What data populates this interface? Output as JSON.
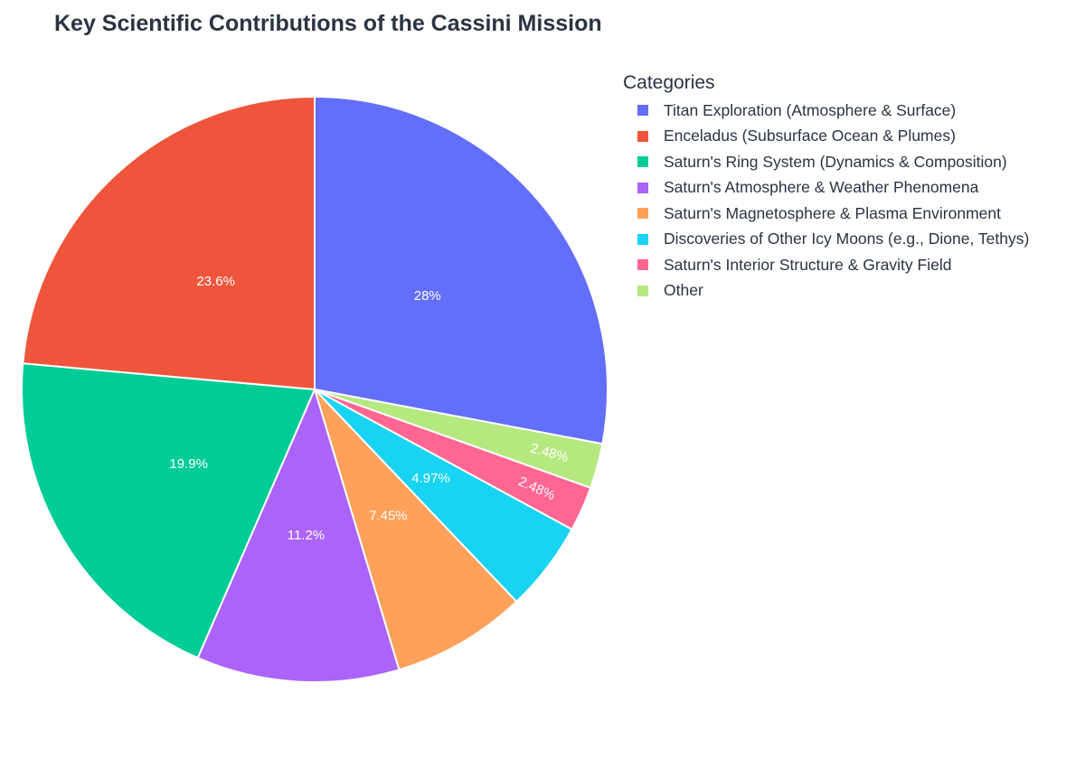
{
  "chart_data": {
    "type": "pie",
    "title": "Key Scientific Contributions of the Cassini Mission",
    "legend_title": "Categories",
    "legend_position": "top-right",
    "slices": [
      {
        "label": "Titan Exploration (Atmosphere & Surface)",
        "value": 28,
        "display": "28%",
        "color": "#636efa"
      },
      {
        "label": "Enceladus (Subsurface Ocean & Plumes)",
        "value": 23.6,
        "display": "23.6%",
        "color": "#ef553b"
      },
      {
        "label": "Saturn's Ring System (Dynamics & Composition)",
        "value": 19.9,
        "display": "19.9%",
        "color": "#00cc96"
      },
      {
        "label": "Saturn's Atmosphere & Weather Phenomena",
        "value": 11.2,
        "display": "11.2%",
        "color": "#ab63fa"
      },
      {
        "label": "Saturn's Magnetosphere & Plasma Environment",
        "value": 7.45,
        "display": "7.45%",
        "color": "#ffa15a"
      },
      {
        "label": "Discoveries of Other Icy Moons (e.g., Dione, Tethys)",
        "value": 4.97,
        "display": "4.97%",
        "color": "#19d3f3"
      },
      {
        "label": "Saturn's Interior Structure & Gravity Field",
        "value": 2.48,
        "display": "2.48%",
        "color": "#ff6692"
      },
      {
        "label": "Other",
        "value": 2.48,
        "display": "2.48%",
        "color": "#b6e880"
      }
    ],
    "pie_order": [
      0,
      7,
      6,
      5,
      4,
      3,
      2,
      1
    ]
  }
}
